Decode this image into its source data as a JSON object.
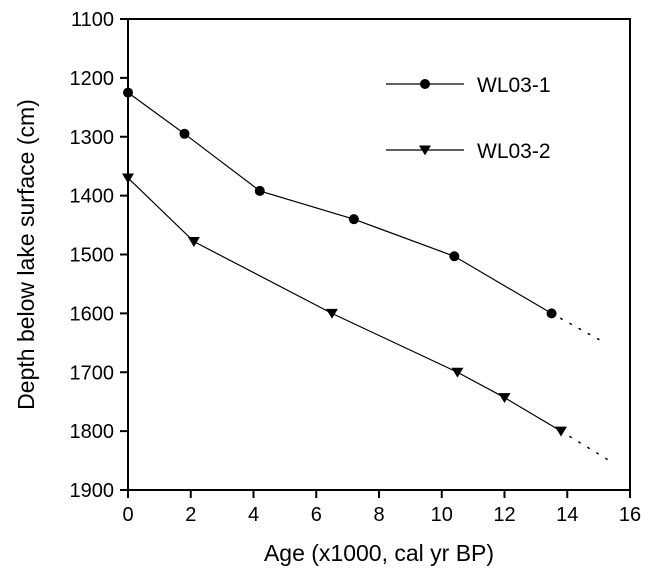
{
  "chart_data": {
    "type": "line",
    "xlabel": "Age (x1000, cal yr BP)",
    "ylabel": "Depth below lake surface (cm)",
    "xlim": [
      0,
      16
    ],
    "ylim": [
      1100,
      1900
    ],
    "y_inverted": true,
    "x_ticks": [
      "0",
      "2",
      "4",
      "6",
      "8",
      "10",
      "12",
      "14",
      "16"
    ],
    "y_ticks": [
      "1100",
      "1200",
      "1300",
      "1400",
      "1500",
      "1600",
      "1700",
      "1800",
      "1900"
    ],
    "grid": false,
    "legend_position": "top-right",
    "series": [
      {
        "name": "WL03-1",
        "marker": "circle",
        "x": [
          0,
          1.8,
          4.2,
          7.2,
          10.4,
          13.5
        ],
        "y": [
          1225,
          1295,
          1392,
          1440,
          1503,
          1600
        ],
        "extrapolation": {
          "style": "dotted",
          "to": [
            15.2,
            1650
          ]
        }
      },
      {
        "name": "WL03-2",
        "marker": "triangle-down",
        "x": [
          0,
          2.1,
          6.5,
          10.5,
          12,
          13.8
        ],
        "y": [
          1370,
          1478,
          1600,
          1700,
          1743,
          1800
        ],
        "extrapolation": {
          "style": "dotted",
          "to": [
            15.4,
            1852
          ]
        }
      }
    ]
  }
}
